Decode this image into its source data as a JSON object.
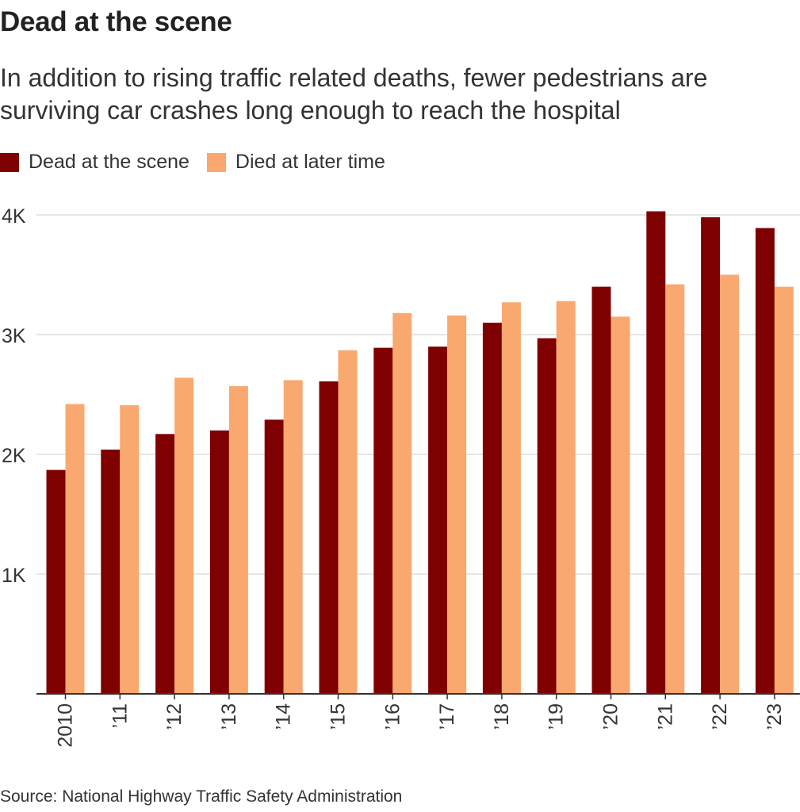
{
  "colors": {
    "dead_at_scene": "#7f0000",
    "died_later": "#f9a86f",
    "grid": "#dddddd",
    "axis": "#333333",
    "text": "#333333"
  },
  "chart_data": {
    "type": "bar",
    "title": "Dead at the scene",
    "subtitle": "In addition to rising traffic related deaths, fewer pedestrians are surviving car crashes long enough to reach the hospital",
    "categories": [
      "2010",
      "’11",
      "’12",
      "’13",
      "’14",
      "’15",
      "’16",
      "’17",
      "’18",
      "’19",
      "’20",
      "’21",
      "’22",
      "’23"
    ],
    "series": [
      {
        "name": "Dead at the scene",
        "color": "#7f0000",
        "values": [
          1870,
          2040,
          2170,
          2200,
          2290,
          2610,
          2890,
          2900,
          3100,
          2970,
          3400,
          4030,
          3980,
          3890
        ]
      },
      {
        "name": "Died at later time",
        "color": "#f9a86f",
        "values": [
          2420,
          2410,
          2640,
          2570,
          2620,
          2870,
          3180,
          3160,
          3270,
          3280,
          3150,
          3420,
          3500,
          3400
        ]
      }
    ],
    "y_ticks": [
      {
        "value": 1000,
        "label": "1K"
      },
      {
        "value": 2000,
        "label": "2K"
      },
      {
        "value": 3000,
        "label": "3K"
      },
      {
        "value": 4000,
        "label": "4K"
      }
    ],
    "ylim": [
      0,
      4000
    ],
    "xlabel": "",
    "ylabel": "",
    "grid": true,
    "legend_position": "top-left"
  },
  "source": "Source: National Highway Traffic Safety Administration"
}
